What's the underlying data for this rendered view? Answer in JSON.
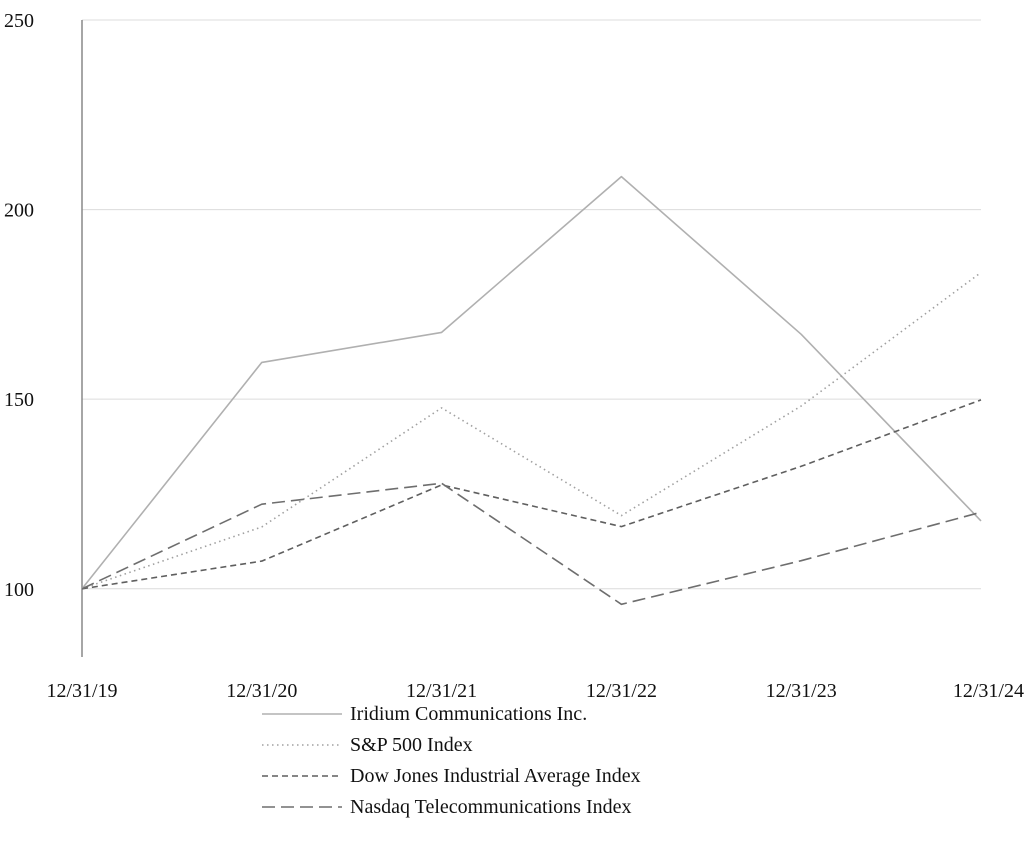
{
  "chart_data": {
    "type": "line",
    "title": "",
    "xlabel": "",
    "ylabel": "",
    "categories": [
      "12/31/19",
      "12/31/20",
      "12/31/21",
      "12/31/22",
      "12/31/23",
      "12/31/24"
    ],
    "ylim": [
      82,
      250
    ],
    "yticks": [
      100,
      150,
      200,
      250
    ],
    "grid": "horizontal",
    "legend_position": "bottom",
    "series": [
      {
        "name": "Iridium Communications Inc.",
        "values": [
          100,
          159.7,
          167.6,
          208.7,
          167.1,
          117.9
        ],
        "color": "#b0b0b0",
        "dash": "solid"
      },
      {
        "name": "S&P 500 Index",
        "values": [
          100,
          116.3,
          147.7,
          119.3,
          148.2,
          183.4
        ],
        "color": "#a0a0a0",
        "dash": "dotted"
      },
      {
        "name": "Dow Jones Industrial Average Index",
        "values": [
          100,
          107.3,
          127.4,
          116.4,
          132.3,
          149.8
        ],
        "color": "#5f5f5f",
        "dash": "short-dash"
      },
      {
        "name": "Nasdaq Telecommunications Index",
        "values": [
          100,
          122.3,
          127.8,
          95.9,
          107.4,
          120.2
        ],
        "color": "#6e6e6e",
        "dash": "long-dash"
      }
    ]
  }
}
